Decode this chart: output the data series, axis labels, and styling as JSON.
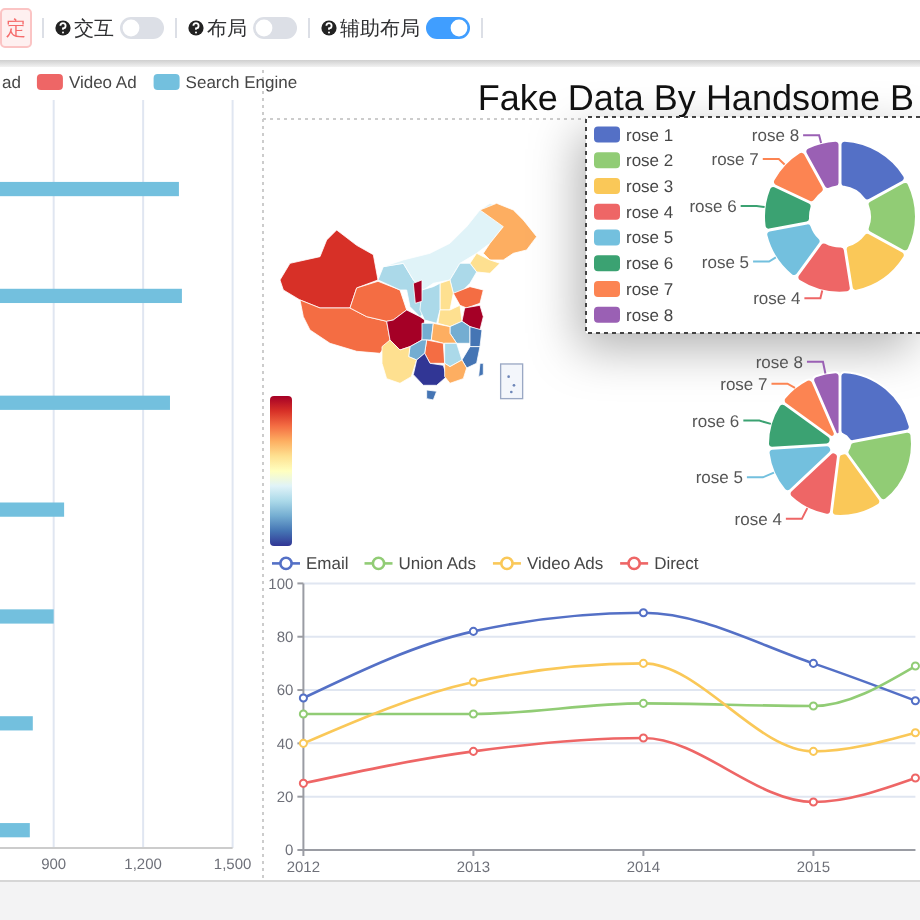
{
  "chart_data": [
    {
      "type": "other",
      "annotations": [
        "定",
        "交互",
        "布局",
        "辅助布局"
      ]
    },
    {
      "type": "bar",
      "orientation": "horizontal",
      "categories": [
        null,
        null,
        null,
        null,
        null,
        null,
        null
      ],
      "series": [
        {
          "name": "ad",
          "values": [
            null,
            null,
            null,
            null,
            null,
            null,
            null
          ]
        },
        {
          "name": "Video Ad",
          "color": "#ee6666",
          "values": [
            null,
            null,
            null,
            null,
            null,
            null,
            null
          ]
        },
        {
          "name": "Search Engine",
          "color": "#73c0de",
          "values": [
            1320,
            1330,
            1290,
            935,
            900,
            830,
            820
          ]
        }
      ],
      "xlim": [
        720,
        1500
      ],
      "xticks": [
        900,
        {
          "value": 1200,
          "label": "1,200"
        },
        {
          "value": 1500,
          "label": "1,500"
        }
      ],
      "grid": "x",
      "legend": "top"
    },
    {
      "type": "other",
      "title": "Fake Data By Handsome B",
      "colors": [
        "#313695",
        "#4575b4",
        "#74add1",
        "#abd9e9",
        "#e0f3f8",
        "#ffffbf",
        "#fee090",
        "#fdae61",
        "#f46d43",
        "#d73027",
        "#a50026"
      ]
    },
    {
      "type": "donut",
      "categories": [
        "rose 1",
        "rose 2",
        "rose 3",
        "rose 4",
        "rose 5",
        "rose 6",
        "rose 7",
        "rose 8"
      ],
      "values": [
        17,
        16,
        14.5,
        12.5,
        12,
        10,
        10,
        8
      ],
      "colors": [
        "#5470c6",
        "#91cc75",
        "#fac858",
        "#ee6666",
        "#73c0de",
        "#3ba272",
        "#fc8452",
        "#9a60b4"
      ],
      "legend": "left"
    },
    {
      "type": "donut",
      "categories": [
        null,
        null,
        null,
        "rose 4",
        "rose 5",
        "rose 6",
        "rose 7",
        "rose 8"
      ],
      "values": [
        22,
        18,
        12,
        11,
        11,
        11,
        8.5,
        6.5
      ],
      "colors": [
        "#5470c6",
        "#91cc75",
        "#fac858",
        "#ee6666",
        "#73c0de",
        "#3ba272",
        "#fc8452",
        "#9a60b4"
      ]
    },
    {
      "type": "line",
      "x": [
        2012,
        2013,
        2014,
        2015,
        2015.6
      ],
      "xlim": [
        2012,
        2015.6
      ],
      "xticks": [
        2012,
        2013,
        2014,
        2015
      ],
      "ylim": [
        0,
        100
      ],
      "yticks": [
        0,
        20,
        40,
        60,
        80,
        100
      ],
      "grid": "y",
      "legend": "top left",
      "marker": "circle",
      "series": [
        {
          "name": "Email",
          "color": "#5470c6",
          "values": [
            57,
            82,
            89,
            70,
            56
          ]
        },
        {
          "name": "Union Ads",
          "color": "#91cc75",
          "values": [
            51,
            51,
            55,
            54,
            69
          ]
        },
        {
          "name": "Video Ads",
          "color": "#fac858",
          "values": [
            40,
            63,
            70,
            37,
            44
          ]
        },
        {
          "name": "Direct",
          "color": "#ee6666",
          "values": [
            25,
            37,
            42,
            18,
            27
          ]
        }
      ]
    }
  ]
}
